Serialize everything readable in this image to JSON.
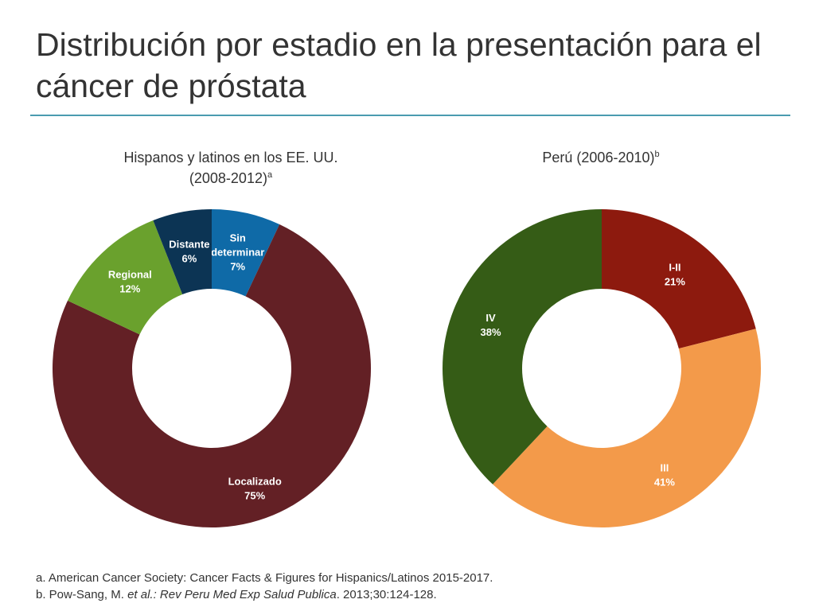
{
  "slide": {
    "title": "Distribución por estadio en la presentación para el cáncer de próstata"
  },
  "chart_data": [
    {
      "type": "pie",
      "donut": true,
      "title": "Hispanos y latinos en los EE. UU. (2008-2012)",
      "title_line1": "Hispanos y latinos en los EE. UU.",
      "title_line2": "(2008-2012)",
      "footnote_marker": "a",
      "slices": [
        {
          "label": "Sin determinar",
          "lines": [
            "Sin",
            "determinar",
            "7%"
          ],
          "value": 7,
          "color": "#0f6aa7"
        },
        {
          "label": "Localizado",
          "lines": [
            "Localizado",
            "75%"
          ],
          "value": 75,
          "color": "#632025"
        },
        {
          "label": "Regional",
          "lines": [
            "Regional",
            "12%"
          ],
          "value": 12,
          "color": "#6aa12d"
        },
        {
          "label": "Distante",
          "lines": [
            "Distante",
            "6%"
          ],
          "value": 6,
          "color": "#0c3454"
        }
      ]
    },
    {
      "type": "pie",
      "donut": true,
      "title": "Perú (2006-2010)",
      "title_line1": "Perú (2006-2010)",
      "footnote_marker": "b",
      "slices": [
        {
          "label": "I-II",
          "lines": [
            "I-II",
            "21%"
          ],
          "value": 21,
          "color": "#8d1a0e"
        },
        {
          "label": "III",
          "lines": [
            "III",
            "41%"
          ],
          "value": 41,
          "color": "#f39a4a"
        },
        {
          "label": "IV",
          "lines": [
            "IV",
            "38%"
          ],
          "value": 38,
          "color": "#355c16"
        }
      ]
    }
  ],
  "footnotes": {
    "a_text": "a. American Cancer Society: Cancer Facts & Figures for Hispanics/Latinos 2015-2017.",
    "b_prefix": "b. Pow-Sang, M. ",
    "b_etal": "et al.:",
    "b_journal": " Rev Peru Med Exp Salud Publica",
    "b_suffix": ". 2013;30:124-128."
  }
}
